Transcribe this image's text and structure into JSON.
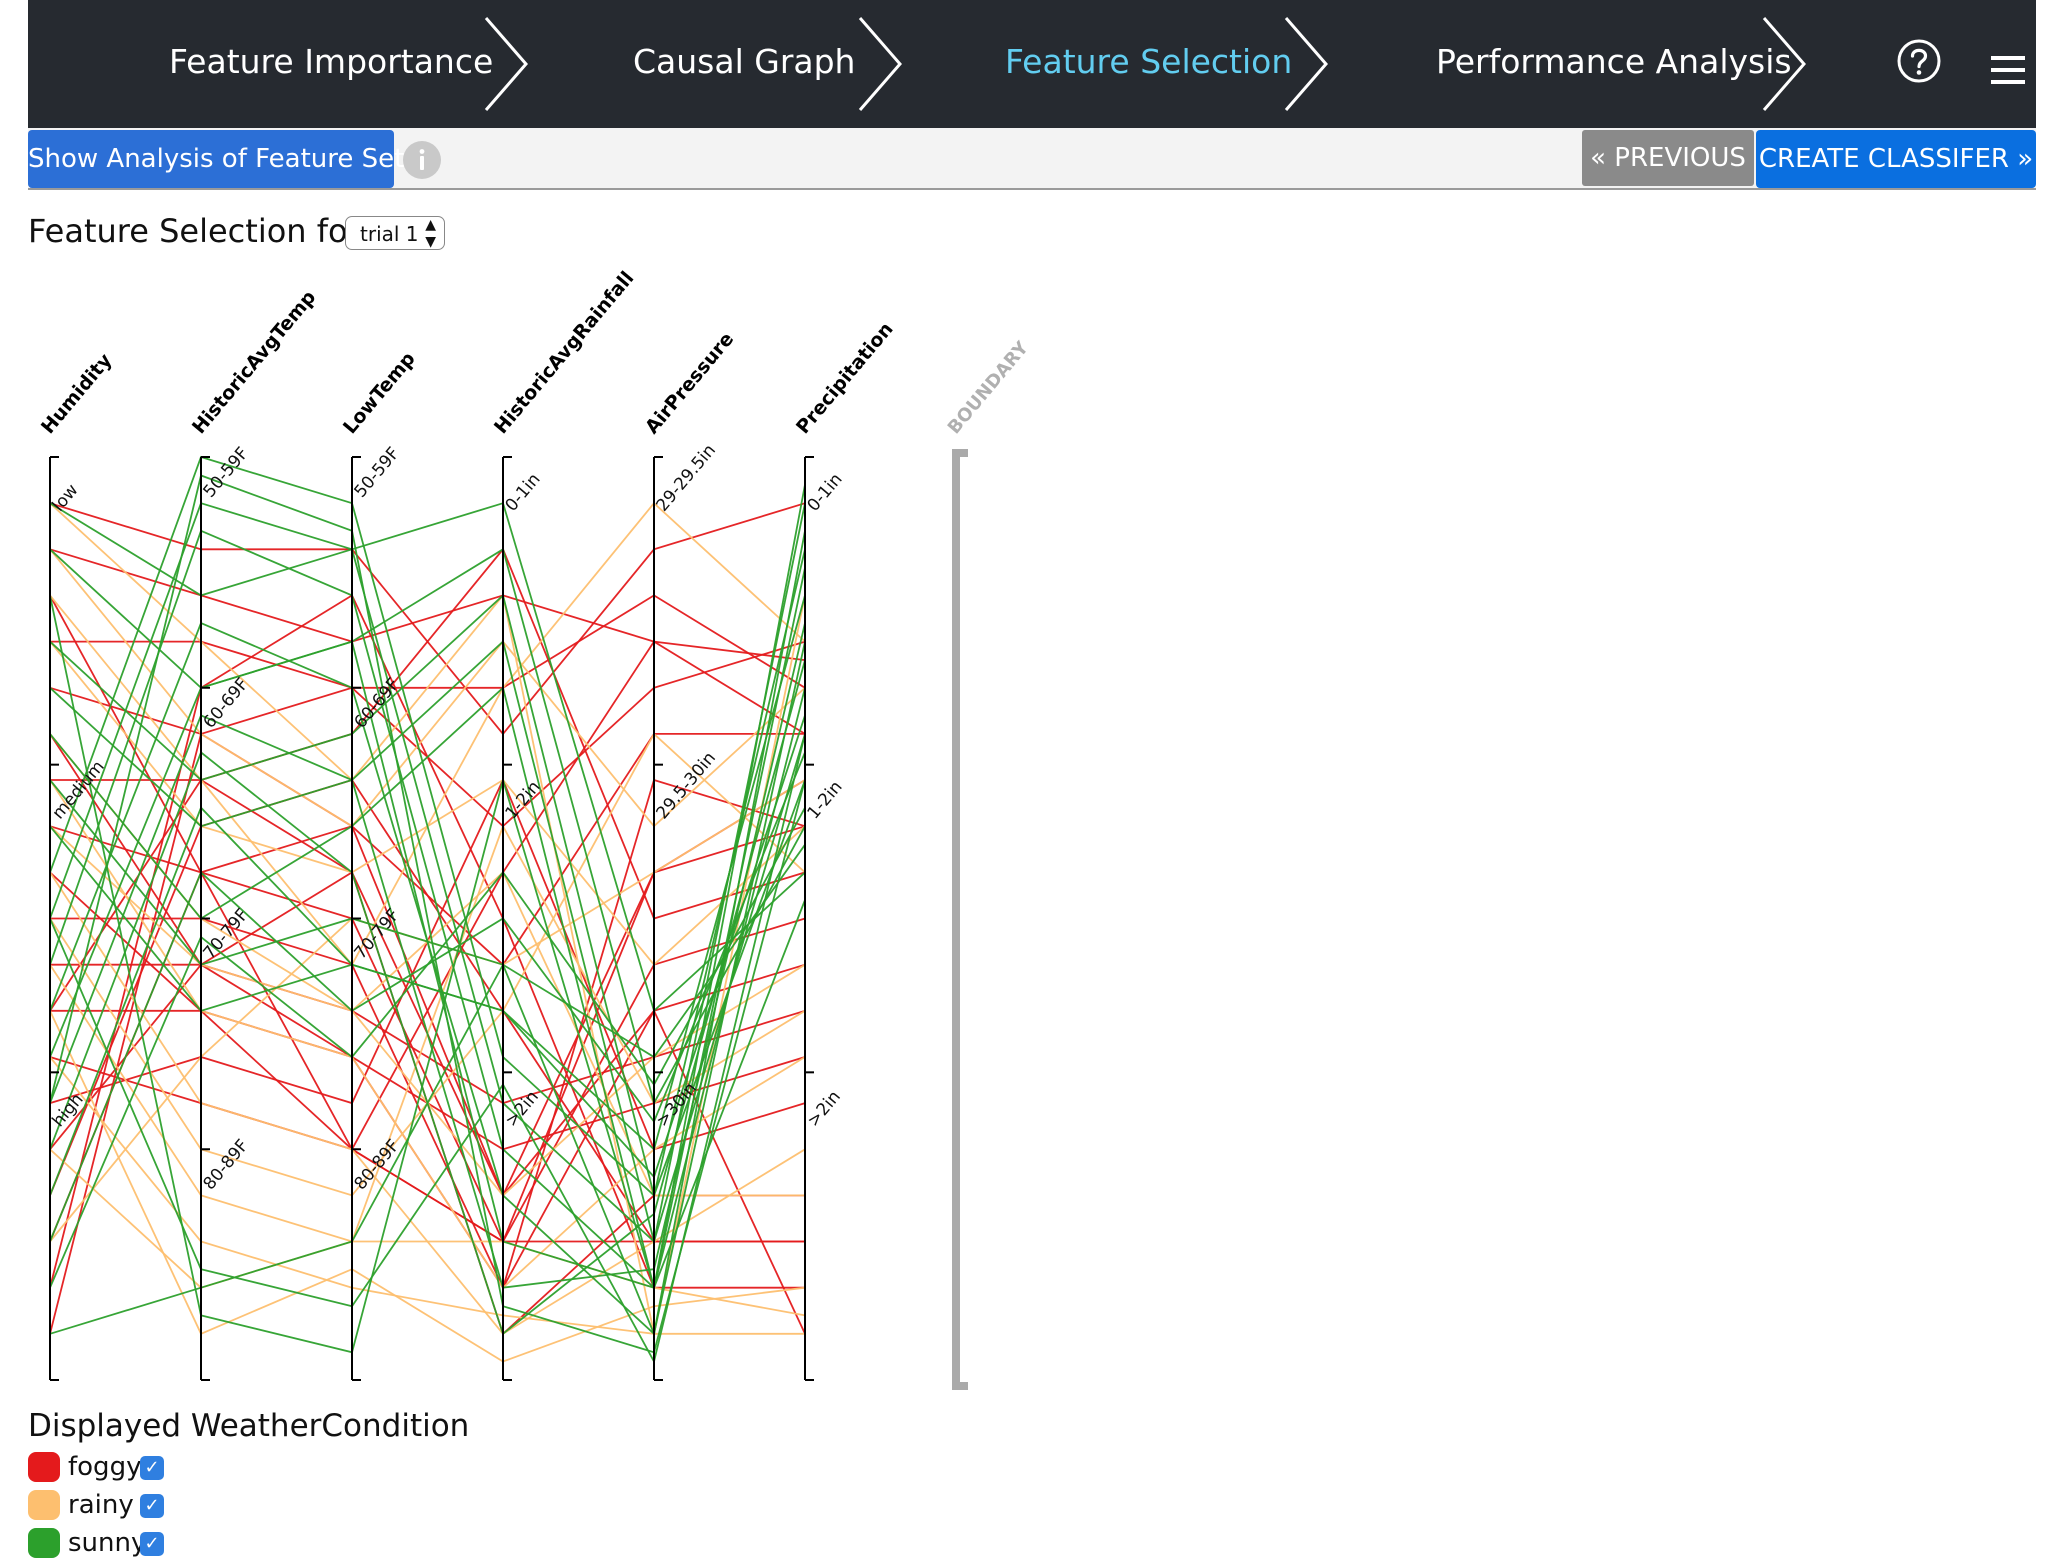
{
  "nav": {
    "steps": [
      {
        "label": "Feature Importance"
      },
      {
        "label": "Causal Graph"
      },
      {
        "label": "Feature Selection"
      },
      {
        "label": "Performance Analysis"
      }
    ],
    "help_icon": "question-circle-icon",
    "menu_icon": "hamburger-menu-icon",
    "active_color": "#62cdf0"
  },
  "toolbar": {
    "analysis_button": "Show Analysis of Feature Set",
    "info_icon": "info-icon",
    "previous_button": "« PREVIOUS",
    "create_button": "CREATE CLASSIFER »"
  },
  "selection": {
    "label": "Feature Selection for:",
    "trial_value": "trial 1"
  },
  "chart_data": {
    "type": "parallel-coordinates",
    "axes": [
      {
        "name": "Humidity",
        "ticks": [
          "low",
          "medium",
          "high"
        ]
      },
      {
        "name": "HistoricAvgTemp",
        "ticks": [
          "50-59F",
          "60-69F",
          "70-79F",
          "80-89F"
        ]
      },
      {
        "name": "LowTemp",
        "ticks": [
          "50-59F",
          "60-69F",
          "70-79F",
          "80-89F"
        ]
      },
      {
        "name": "HistoricAvgRainfall",
        "ticks": [
          "0-1in",
          "1-2in",
          ">2in"
        ]
      },
      {
        "name": "AirPressure",
        "ticks": [
          "29-29.5in",
          "29.5-30in",
          ">30in"
        ]
      },
      {
        "name": "Precipitation",
        "ticks": [
          "0-1in",
          "1-2in",
          ">2in"
        ]
      }
    ],
    "boundary_label": "BOUNDARY",
    "classes": [
      {
        "name": "foggy",
        "color": "#e41a1c"
      },
      {
        "name": "rainy",
        "color": "#fdbf6f"
      },
      {
        "name": "sunny",
        "color": "#2ca02c"
      }
    ],
    "records": [
      {
        "c": 0,
        "v": [
          0.05,
          0.1,
          0.1,
          0.3,
          0.1,
          0.05
        ]
      },
      {
        "c": 0,
        "v": [
          0.1,
          0.15,
          0.2,
          0.15,
          0.2,
          0.22
        ]
      },
      {
        "c": 0,
        "v": [
          0.2,
          0.2,
          0.25,
          0.4,
          0.25,
          0.2
        ]
      },
      {
        "c": 0,
        "v": [
          0.25,
          0.3,
          0.4,
          0.55,
          0.3,
          0.3
        ]
      },
      {
        "c": 0,
        "v": [
          0.35,
          0.35,
          0.45,
          0.8,
          0.45,
          0.4
        ]
      },
      {
        "c": 0,
        "v": [
          0.4,
          0.45,
          0.5,
          0.85,
          0.55,
          0.5
        ]
      },
      {
        "c": 0,
        "v": [
          0.5,
          0.5,
          0.55,
          0.9,
          0.6,
          0.55
        ]
      },
      {
        "c": 0,
        "v": [
          0.55,
          0.55,
          0.6,
          0.7,
          0.65,
          0.6
        ]
      },
      {
        "c": 0,
        "v": [
          0.6,
          0.6,
          0.65,
          0.75,
          0.7,
          0.65
        ]
      },
      {
        "c": 0,
        "v": [
          0.7,
          0.65,
          0.7,
          0.35,
          0.75,
          0.7
        ]
      },
      {
        "c": 0,
        "v": [
          0.75,
          0.55,
          0.45,
          0.95,
          0.8,
          0.8
        ]
      },
      {
        "c": 0,
        "v": [
          0.8,
          0.4,
          0.35,
          0.6,
          0.85,
          0.85
        ]
      },
      {
        "c": 0,
        "v": [
          0.9,
          0.25,
          0.15,
          0.5,
          0.9,
          0.9
        ]
      },
      {
        "c": 0,
        "v": [
          0.95,
          0.3,
          0.25,
          0.25,
          0.15,
          0.25
        ]
      },
      {
        "c": 0,
        "v": [
          0.15,
          0.45,
          0.75,
          0.85,
          0.45,
          0.35
        ]
      },
      {
        "c": 0,
        "v": [
          0.6,
          0.35,
          0.3,
          0.1,
          0.5,
          0.45
        ]
      },
      {
        "c": 0,
        "v": [
          0.3,
          0.55,
          0.65,
          0.9,
          0.35,
          0.4
        ]
      },
      {
        "c": 0,
        "v": [
          0.85,
          0.45,
          0.4,
          0.8,
          0.6,
          0.95
        ]
      },
      {
        "c": 0,
        "v": [
          0.45,
          0.6,
          0.75,
          0.45,
          0.2,
          0.3
        ]
      },
      {
        "c": 0,
        "v": [
          0.65,
          0.7,
          0.75,
          0.85,
          0.85,
          0.85
        ]
      },
      {
        "c": 1,
        "v": [
          0.05,
          0.2,
          0.35,
          0.15,
          0.95,
          0.15
        ]
      },
      {
        "c": 1,
        "v": [
          0.1,
          0.3,
          0.4,
          0.2,
          0.4,
          0.25
        ]
      },
      {
        "c": 1,
        "v": [
          0.2,
          0.4,
          0.45,
          0.35,
          0.55,
          0.4
        ]
      },
      {
        "c": 1,
        "v": [
          0.3,
          0.5,
          0.6,
          0.8,
          0.65,
          0.55
        ]
      },
      {
        "c": 1,
        "v": [
          0.35,
          0.6,
          0.65,
          0.9,
          0.75,
          0.65
        ]
      },
      {
        "c": 1,
        "v": [
          0.45,
          0.7,
          0.75,
          0.95,
          0.85,
          0.75
        ]
      },
      {
        "c": 1,
        "v": [
          0.5,
          0.75,
          0.8,
          0.6,
          0.3,
          0.45
        ]
      },
      {
        "c": 1,
        "v": [
          0.55,
          0.8,
          0.85,
          0.85,
          0.9,
          0.93
        ]
      },
      {
        "c": 1,
        "v": [
          0.65,
          0.85,
          0.9,
          0.93,
          0.95,
          0.95
        ]
      },
      {
        "c": 1,
        "v": [
          0.75,
          0.9,
          0.85,
          0.4,
          0.7,
          0.6
        ]
      },
      {
        "c": 1,
        "v": [
          0.85,
          0.65,
          0.5,
          0.55,
          0.45,
          0.35
        ]
      },
      {
        "c": 1,
        "v": [
          0.15,
          0.35,
          0.55,
          0.25,
          0.05,
          0.2
        ]
      },
      {
        "c": 1,
        "v": [
          0.4,
          0.55,
          0.6,
          0.45,
          0.8,
          0.8
        ]
      },
      {
        "c": 1,
        "v": [
          0.6,
          0.95,
          0.88,
          0.98,
          0.92,
          0.9
        ]
      },
      {
        "c": 2,
        "v": [
          0.05,
          0.15,
          0.1,
          0.05,
          0.6,
          0.45
        ]
      },
      {
        "c": 2,
        "v": [
          0.1,
          0.25,
          0.2,
          0.1,
          0.7,
          0.4
        ]
      },
      {
        "c": 2,
        "v": [
          0.2,
          0.35,
          0.3,
          0.15,
          0.8,
          0.35
        ]
      },
      {
        "c": 2,
        "v": [
          0.25,
          0.4,
          0.35,
          0.2,
          0.85,
          0.3
        ]
      },
      {
        "c": 2,
        "v": [
          0.3,
          0.5,
          0.4,
          0.25,
          0.9,
          0.25
        ]
      },
      {
        "c": 2,
        "v": [
          0.35,
          0.55,
          0.5,
          0.55,
          0.95,
          0.2
        ]
      },
      {
        "c": 2,
        "v": [
          0.4,
          0.6,
          0.55,
          0.6,
          0.75,
          0.15
        ]
      },
      {
        "c": 2,
        "v": [
          0.45,
          0.0,
          0.05,
          0.65,
          0.8,
          0.1
        ]
      },
      {
        "c": 2,
        "v": [
          0.5,
          0.05,
          0.1,
          0.7,
          0.85,
          0.05
        ]
      },
      {
        "c": 2,
        "v": [
          0.55,
          0.08,
          0.15,
          0.75,
          0.9,
          0.03
        ]
      },
      {
        "c": 2,
        "v": [
          0.6,
          0.18,
          0.25,
          0.8,
          0.95,
          0.08
        ]
      },
      {
        "c": 2,
        "v": [
          0.65,
          0.25,
          0.2,
          0.85,
          0.9,
          0.12
        ]
      },
      {
        "c": 2,
        "v": [
          0.7,
          0.28,
          0.35,
          0.9,
          0.88,
          0.18
        ]
      },
      {
        "c": 2,
        "v": [
          0.75,
          0.32,
          0.45,
          0.95,
          0.82,
          0.22
        ]
      },
      {
        "c": 2,
        "v": [
          0.8,
          0.38,
          0.55,
          0.6,
          0.78,
          0.28
        ]
      },
      {
        "c": 2,
        "v": [
          0.85,
          0.45,
          0.6,
          0.5,
          0.72,
          0.32
        ]
      },
      {
        "c": 2,
        "v": [
          0.9,
          0.52,
          0.65,
          0.45,
          0.68,
          0.38
        ]
      },
      {
        "c": 2,
        "v": [
          0.95,
          0.9,
          0.85,
          0.55,
          0.65,
          0.42
        ]
      },
      {
        "c": 2,
        "v": [
          0.15,
          0.93,
          0.97,
          0.35,
          0.9,
          0.48
        ]
      },
      {
        "c": 2,
        "v": [
          0.5,
          0.88,
          0.92,
          0.68,
          0.98,
          0.3
        ]
      },
      {
        "c": 2,
        "v": [
          0.7,
          0.02,
          0.08,
          0.92,
          0.97,
          0.35
        ]
      }
    ]
  },
  "legend": {
    "title": "Displayed WeatherCondition",
    "items": [
      {
        "label": "foggy",
        "color": "#e41a1c"
      },
      {
        "label": "rainy",
        "color": "#fdbf6f"
      },
      {
        "label": "sunny",
        "color": "#2ca02c"
      }
    ]
  }
}
